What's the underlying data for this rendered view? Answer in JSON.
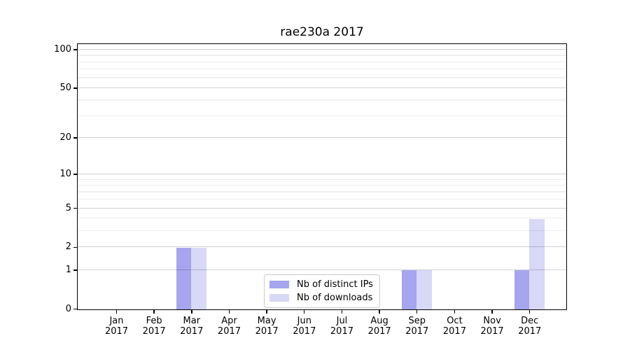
{
  "chart_data": {
    "type": "bar",
    "title": "rae230a 2017",
    "categories": [
      "Jan",
      "Feb",
      "Mar",
      "Apr",
      "May",
      "Jun",
      "Jul",
      "Aug",
      "Sep",
      "Oct",
      "Nov",
      "Dec"
    ],
    "x_tick_year": "2017",
    "series": [
      {
        "name": "Nb of distinct IPs",
        "color": "#a5a5f0",
        "values": [
          0,
          0,
          2,
          0,
          0,
          0,
          0,
          0,
          1,
          0,
          0,
          1
        ]
      },
      {
        "name": "Nb of downloads",
        "color": "#d8d8f7",
        "values": [
          0,
          0,
          2,
          0,
          0,
          0,
          0,
          0,
          1,
          0,
          0,
          4
        ]
      }
    ],
    "y_ticks": [
      0,
      1,
      2,
      5,
      10,
      20,
      50,
      100
    ],
    "y_minor_gridlines": [
      3,
      4,
      6,
      7,
      8,
      9,
      30,
      40,
      60,
      70,
      80,
      90
    ],
    "y_scale": "log1p",
    "y_axis_max": 110,
    "ylim": [
      0,
      110
    ],
    "xlabel": "",
    "ylabel": "",
    "grid": true,
    "grid_above_bars": true,
    "legend_position": "lower center",
    "colors": {
      "major_grid": "#d1d1d1",
      "minor_grid": "#efefef",
      "axis": "#000000",
      "background": "#ffffff"
    }
  }
}
